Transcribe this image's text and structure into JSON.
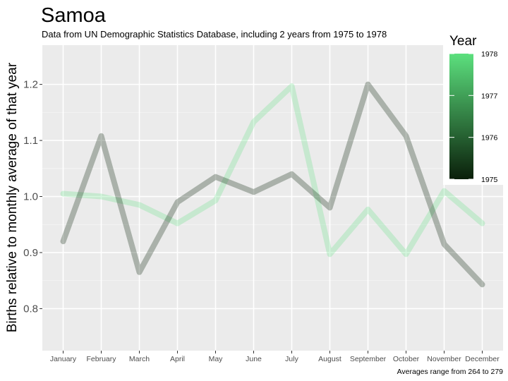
{
  "chart_data": {
    "type": "line",
    "title": "Samoa",
    "subtitle": "Data from UN Demographic Statistics Database, including 2 years from 1975 to 1978",
    "ylabel": "Births relative to monthly average of that year",
    "xlabel": "",
    "caption": "Averages range from 264 to 279",
    "categories": [
      "January",
      "February",
      "March",
      "April",
      "May",
      "June",
      "July",
      "August",
      "September",
      "October",
      "November",
      "December"
    ],
    "ylim": [
      0.725,
      1.27
    ],
    "yticks": [
      0.8,
      0.9,
      1.0,
      1.1,
      1.2
    ],
    "ytick_labels": [
      "0.8",
      "0.9",
      "1.0",
      "1.1",
      "1.2"
    ],
    "grid": true,
    "series": [
      {
        "year": 1975,
        "color": "#132B13",
        "values": [
          0.92,
          1.108,
          0.865,
          0.99,
          1.035,
          1.008,
          1.04,
          0.98,
          1.2,
          1.108,
          0.915,
          0.843
        ]
      },
      {
        "year": 1978,
        "color": "#56E07A",
        "values": [
          1.005,
          1.0,
          0.985,
          0.952,
          0.993,
          1.133,
          1.197,
          0.897,
          0.977,
          0.897,
          1.01,
          0.952
        ]
      }
    ],
    "legend": {
      "title": "Year",
      "position": "top-right",
      "ticks": [
        1975,
        1976,
        1977,
        1978
      ],
      "tick_labels": [
        "1975",
        "1976",
        "1977",
        "1978"
      ],
      "color_low": "#0A1F0A",
      "color_high": "#5CE07E"
    }
  }
}
